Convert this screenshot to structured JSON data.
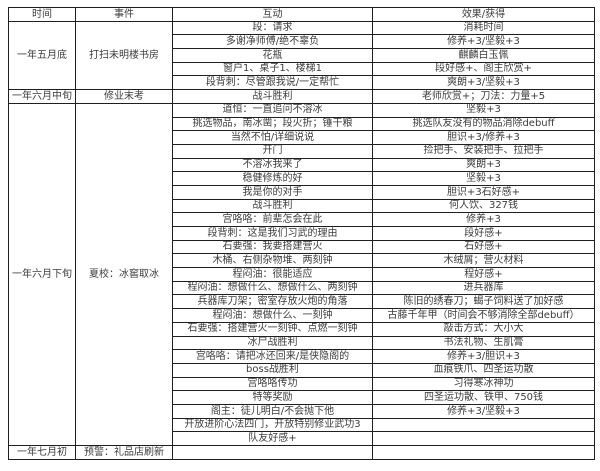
{
  "colors": {
    "background": "#ffffff",
    "grid_border": "#1f1f1f",
    "text": "#3c3c3c"
  },
  "table": {
    "headers": [
      "时间",
      "事件",
      "互动",
      "效果/获得"
    ],
    "groups": [
      {
        "time": "一年五月底",
        "event": "打扫未明楼书房",
        "rows": [
          [
            "段：请求",
            "消耗时间"
          ],
          [
            "多谢净师傅/绝不辜负",
            "修养+3/坚毅+3"
          ],
          [
            "花瓶",
            "麒麟白玉佩"
          ],
          [
            "窗户1、桌子1、楼梯1",
            "段好感+、阁主欣赏+"
          ],
          [
            "段背刺：尽管跟我说/一定帮忙",
            "爽朗+3/坚毅+3"
          ]
        ]
      },
      {
        "time": "一年六月中旬",
        "event": "修业末考",
        "rows": [
          [
            "战斗胜利",
            "老师欣赏+；刀法：力量+5"
          ]
        ]
      },
      {
        "time": "一年六月下旬",
        "event": "夏校：冰窖取冰",
        "rows": [
          [
            "道恒：一直追问不溶冰",
            "坚毅+3"
          ],
          [
            "挑选物品，南冰凿；段火折；锤干粮",
            "挑选队友没有的物品消除debuff"
          ],
          [
            "当然不怕/详细说说",
            "胆识+3/修养+3"
          ],
          [
            "开门",
            "捡把手、安装把手、拉把手"
          ],
          [
            "不溶冰我来了",
            "爽朗+3"
          ],
          [
            "稳健修炼的好",
            "坚毅+3"
          ],
          [
            "我是你的对手",
            "胆识+3石好感+"
          ],
          [
            "战斗胜利",
            "何人饮、327钱"
          ],
          [
            "宫咯咯：前辈怎会在此",
            "修养+3"
          ],
          [
            "段背刺：这是我们习武的理由",
            "段好感+"
          ],
          [
            "石要强：我要搭建营火",
            "石好感+"
          ],
          [
            "木桶、右侧杂物堆、两刻钟",
            "木绒屑；营火材料"
          ],
          [
            "程闷油：很能适应",
            "程好感+"
          ],
          [
            "程闷油：想做什么、想做什么、两刻钟",
            "进兵器库"
          ],
          [
            "兵器库刀架；密室存放火炮的角落",
            "陈旧的绣春刀；蝎子饲料送了加好感"
          ],
          [
            "程闷油：想做什么、一刻钟",
            "古藤千年甲（时间会不够消除全部debuff）"
          ],
          [
            "石要强：搭建营火一刻钟、点燃一刻钟",
            "敲击方式：大小大"
          ],
          [
            "冰尸战胜利",
            "书法礼物、生肌膏"
          ],
          [
            "宫咯咯：请把冰还回来/是侠隐阁的",
            "修养+3/胆识+3"
          ],
          [
            "boss战胜利",
            "血痕铁爪、四圣运功散"
          ],
          [
            "宫咯咯传功",
            "习得寒冰神功"
          ],
          [
            "特等奖励",
            "四圣运功散、铁甲、750钱"
          ],
          [
            "阁主：徒儿明白/不会抛下他",
            "修养+3/坚毅+3"
          ],
          [
            "开放进阶心法四门，开放特别修业武功3",
            ""
          ],
          [
            "队友好感+",
            ""
          ]
        ]
      },
      {
        "time": "一年七月初",
        "event": "预警：礼品店刷新",
        "rows": [
          [
            "",
            ""
          ]
        ]
      }
    ]
  }
}
